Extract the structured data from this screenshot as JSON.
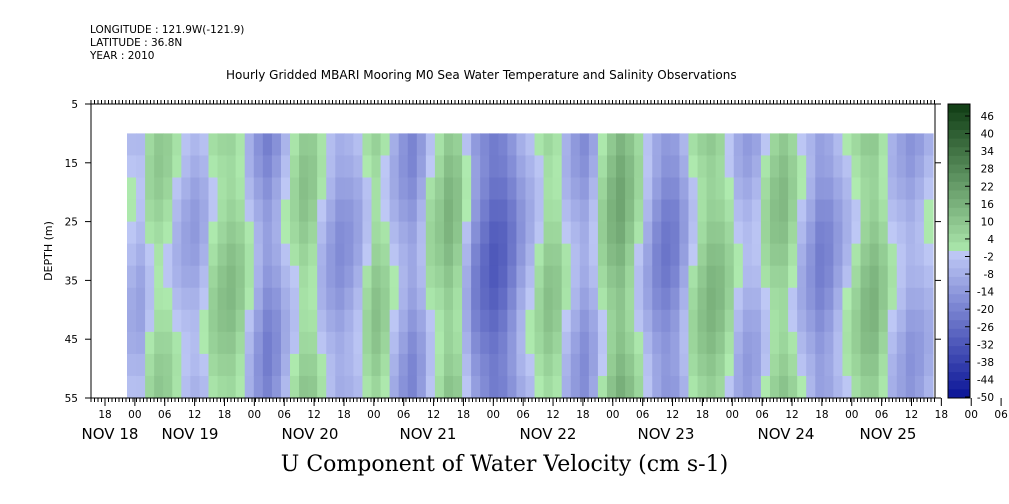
{
  "header": {
    "longitude": "LONGITUDE : 121.9W(-121.9)",
    "latitude": "LATITUDE : 36.8N",
    "year": "YEAR : 2010"
  },
  "chart_data": {
    "type": "heatmap",
    "title": "Hourly Gridded MBARI Mooring M0 Sea Water Temperature and Salinity Observations",
    "xlabel": "U Component of Water Velocity (cm s-1)",
    "ylabel": "DEPTH (m)",
    "y_ticks": [
      "5",
      "15",
      "25",
      "35",
      "45",
      "55"
    ],
    "ylim": [
      55,
      5
    ],
    "data_depth_range": [
      10,
      55
    ],
    "x_hour_labels": [
      "18",
      "00",
      "06",
      "12",
      "18",
      "00",
      "06",
      "12",
      "18",
      "00",
      "06",
      "12",
      "18",
      "00",
      "06",
      "12",
      "18",
      "00",
      "06",
      "12",
      "18",
      "00",
      "06",
      "12",
      "18",
      "00",
      "06",
      "12",
      "18",
      "00",
      "06",
      "12"
    ],
    "x_date_labels": [
      "NOV 18",
      "NOV 19",
      "NOV 20",
      "NOV 21",
      "NOV 22",
      "NOV 23",
      "NOV 24",
      "NOV 25"
    ],
    "colorbar_labels": [
      "46",
      "40",
      "34",
      "28",
      "22",
      "16",
      "10",
      "4",
      "-2",
      "-8",
      "-14",
      "-20",
      "-26",
      "-32",
      "-38",
      "-44",
      "-50"
    ],
    "colorbar_range": [
      -50,
      52
    ],
    "approx_column_values": [
      -4,
      -6,
      2,
      6,
      4,
      -2,
      -6,
      -8,
      -4,
      4,
      8,
      10,
      6,
      -2,
      -10,
      -16,
      -12,
      -4,
      2,
      8,
      6,
      -2,
      -8,
      -12,
      -10,
      -6,
      2,
      8,
      4,
      -4,
      -10,
      -14,
      -8,
      2,
      6,
      12,
      8,
      -4,
      -16,
      -22,
      -26,
      -24,
      -18,
      -10,
      -4,
      2,
      8,
      6,
      -2,
      -8,
      -12,
      -6,
      4,
      12,
      16,
      10,
      2,
      -6,
      -14,
      -18,
      -16,
      -8,
      2,
      8,
      12,
      10,
      4,
      -4,
      -8,
      -6,
      2,
      8,
      10,
      4,
      -4,
      -10,
      -16,
      -14,
      -8,
      -2,
      4,
      10,
      12,
      6,
      -2,
      -6,
      -10,
      -8,
      -4
    ]
  },
  "colors": {
    "negative_deep": "#0a1ea8",
    "near_zero": "#b9c6f2",
    "positive": "#2fd24a"
  }
}
